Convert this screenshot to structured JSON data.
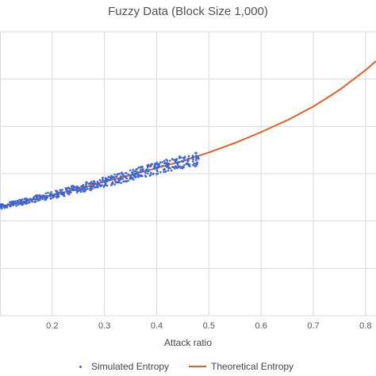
{
  "chart_data": {
    "type": "scatter",
    "title": "Fuzzy Data (Block Size 1,000)",
    "xlabel": "Attack ratio",
    "ylabel": "",
    "x_ticks": [
      "0.2",
      "0.3",
      "0.4",
      "0.5",
      "0.6",
      "0.7",
      "0.8"
    ],
    "x_tick_values": [
      0.2,
      0.3,
      0.4,
      0.5,
      0.6,
      0.7,
      0.8
    ],
    "xlim": [
      0.1,
      0.82
    ],
    "ylim": [
      0,
      6
    ],
    "grid": true,
    "legend_position": "bottom",
    "series": [
      {
        "name": "Simulated Entropy",
        "kind": "scatter",
        "color": "#3a64d8",
        "x_range": [
          0.1,
          0.48
        ],
        "points": [
          [
            0.1,
            2.3
          ],
          [
            0.12,
            2.35
          ],
          [
            0.14,
            2.4
          ],
          [
            0.16,
            2.45
          ],
          [
            0.18,
            2.5
          ],
          [
            0.2,
            2.55
          ],
          [
            0.22,
            2.6
          ],
          [
            0.24,
            2.66
          ],
          [
            0.26,
            2.71
          ],
          [
            0.28,
            2.77
          ],
          [
            0.3,
            2.83
          ],
          [
            0.32,
            2.88
          ],
          [
            0.34,
            2.94
          ],
          [
            0.36,
            3.0
          ],
          [
            0.38,
            3.06
          ],
          [
            0.4,
            3.12
          ],
          [
            0.42,
            3.18
          ],
          [
            0.44,
            3.23
          ],
          [
            0.46,
            3.28
          ],
          [
            0.48,
            3.32
          ]
        ]
      },
      {
        "name": "Theoretical Entropy",
        "kind": "line",
        "color": "#e0622a",
        "x": [
          0.1,
          0.15,
          0.2,
          0.25,
          0.3,
          0.35,
          0.4,
          0.45,
          0.5,
          0.55,
          0.6,
          0.65,
          0.7,
          0.75,
          0.8,
          0.82
        ],
        "y": [
          2.3,
          2.42,
          2.55,
          2.68,
          2.83,
          2.97,
          3.12,
          3.27,
          3.45,
          3.65,
          3.88,
          4.13,
          4.42,
          4.77,
          5.19,
          5.38
        ]
      }
    ]
  }
}
